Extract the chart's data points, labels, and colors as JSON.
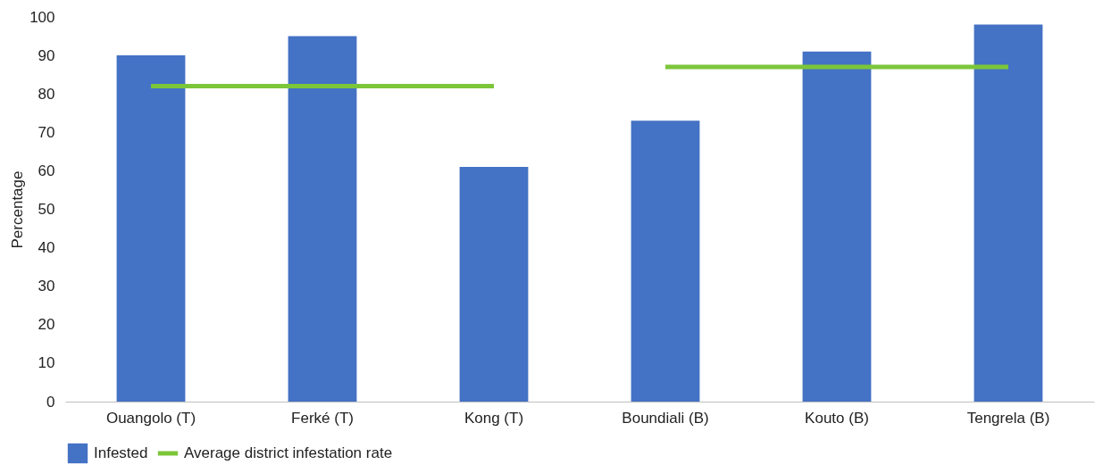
{
  "chart_data": {
    "type": "bar",
    "ylabel": "Percentage",
    "categories": [
      "Ouangolo (T)",
      "Ferké (T)",
      "Kong (T)",
      "Boundiali (B)",
      "Kouto (B)",
      "Tengrela (B)"
    ],
    "series": [
      {
        "name": "Infested",
        "color": "#4472c4",
        "values": [
          90,
          95,
          61,
          73,
          91,
          98
        ]
      },
      {
        "name": "Average district infestation rate",
        "type": "line",
        "color": "#7cc63a",
        "values": [
          82,
          82,
          82,
          null,
          null,
          null
        ]
      },
      {
        "type": "line",
        "color": "#7cc63a",
        "values": [
          null,
          null,
          null,
          87,
          87,
          87
        ]
      }
    ],
    "ylim": [
      0,
      100
    ],
    "yticks": [
      0,
      10,
      20,
      30,
      40,
      50,
      60,
      70,
      80,
      90,
      100
    ],
    "grid": false,
    "legend": "bottom"
  }
}
